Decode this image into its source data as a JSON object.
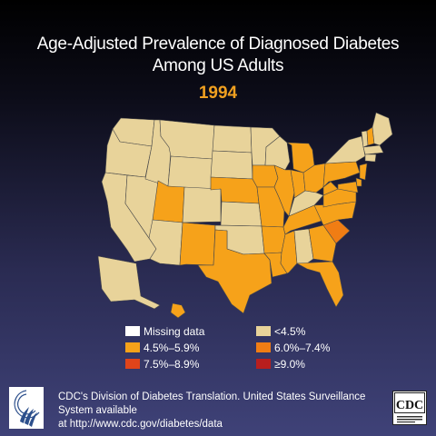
{
  "title": {
    "line1": "Age-Adjusted Prevalence of Diagnosed Diabetes",
    "line2": "Among US Adults",
    "year": "1994"
  },
  "colors": {
    "missing": "#ffffff",
    "lt_4_5": "#e8d39a",
    "c_4_5_5_9": "#f6a21a",
    "c_6_0_7_4": "#f07d14",
    "c_7_5_8_9": "#e0441a",
    "ge_9_0": "#b81e1e"
  },
  "legend": [
    {
      "label": "Missing data",
      "color_key": "missing"
    },
    {
      "label": "<4.5%",
      "color_key": "lt_4_5"
    },
    {
      "label": "4.5%–5.9%",
      "color_key": "c_4_5_5_9"
    },
    {
      "label": "6.0%–7.4%",
      "color_key": "c_6_0_7_4"
    },
    {
      "label": "7.5%–8.9%",
      "color_key": "c_7_5_8_9"
    },
    {
      "label": "≥9.0%",
      "color_key": "ge_9_0"
    }
  ],
  "map_data": {
    "states": [
      {
        "state": "WA",
        "category": "<4.5%"
      },
      {
        "state": "OR",
        "category": "<4.5%"
      },
      {
        "state": "CA",
        "category": "<4.5%"
      },
      {
        "state": "NV",
        "category": "<4.5%"
      },
      {
        "state": "ID",
        "category": "<4.5%"
      },
      {
        "state": "MT",
        "category": "<4.5%"
      },
      {
        "state": "WY",
        "category": "<4.5%"
      },
      {
        "state": "UT",
        "category": "4.5%–5.9%"
      },
      {
        "state": "AZ",
        "category": "<4.5%"
      },
      {
        "state": "CO",
        "category": "<4.5%"
      },
      {
        "state": "NM",
        "category": "4.5%–5.9%"
      },
      {
        "state": "ND",
        "category": "<4.5%"
      },
      {
        "state": "SD",
        "category": "<4.5%"
      },
      {
        "state": "NE",
        "category": "4.5%–5.9%"
      },
      {
        "state": "KS",
        "category": "<4.5%"
      },
      {
        "state": "OK",
        "category": "<4.5%"
      },
      {
        "state": "TX",
        "category": "4.5%–5.9%"
      },
      {
        "state": "MN",
        "category": "<4.5%"
      },
      {
        "state": "IA",
        "category": "4.5%–5.9%"
      },
      {
        "state": "MO",
        "category": "4.5%–5.9%"
      },
      {
        "state": "AR",
        "category": "4.5%–5.9%"
      },
      {
        "state": "LA",
        "category": "4.5%–5.9%"
      },
      {
        "state": "WI",
        "category": "<4.5%"
      },
      {
        "state": "IL",
        "category": "4.5%–5.9%"
      },
      {
        "state": "MI",
        "category": "4.5%–5.9%"
      },
      {
        "state": "IN",
        "category": "4.5%–5.9%"
      },
      {
        "state": "OH",
        "category": "4.5%–5.9%"
      },
      {
        "state": "KY",
        "category": "<4.5%"
      },
      {
        "state": "TN",
        "category": "4.5%–5.9%"
      },
      {
        "state": "MS",
        "category": "4.5%–5.9%"
      },
      {
        "state": "AL",
        "category": "<4.5%"
      },
      {
        "state": "GA",
        "category": "4.5%–5.9%"
      },
      {
        "state": "FL",
        "category": "4.5%–5.9%"
      },
      {
        "state": "SC",
        "category": "6.0%–7.4%"
      },
      {
        "state": "NC",
        "category": "4.5%–5.9%"
      },
      {
        "state": "VA",
        "category": "4.5%–5.9%"
      },
      {
        "state": "WV",
        "category": "4.5%–5.9%"
      },
      {
        "state": "PA",
        "category": "4.5%–5.9%"
      },
      {
        "state": "NY",
        "category": "<4.5%"
      },
      {
        "state": "VT",
        "category": "<4.5%"
      },
      {
        "state": "NH",
        "category": "4.5%–5.9%"
      },
      {
        "state": "ME",
        "category": "<4.5%"
      },
      {
        "state": "MA",
        "category": "<4.5%"
      },
      {
        "state": "CT",
        "category": "<4.5%"
      },
      {
        "state": "NJ",
        "category": "4.5%–5.9%"
      },
      {
        "state": "DE",
        "category": "4.5%–5.9%"
      },
      {
        "state": "MD",
        "category": "4.5%–5.9%"
      },
      {
        "state": "AK",
        "category": "<4.5%"
      },
      {
        "state": "HI",
        "category": "4.5%–5.9%"
      }
    ]
  },
  "footer": {
    "line1": "CDC's Division of Diabetes Translation.  United States Surveillance System available",
    "line2": "at http://www.cdc.gov/diabetes/data"
  },
  "logos": {
    "hhs": "hhs-eagle-logo",
    "cdc": "CDC"
  }
}
